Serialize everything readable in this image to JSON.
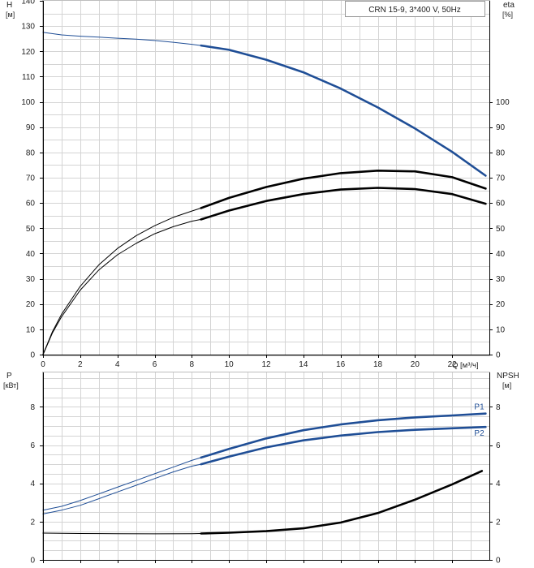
{
  "legend_label": "CRN 15-9, 3*400 V, 50Hz",
  "chart_data": [
    {
      "type": "line",
      "panel": "head-efficiency",
      "xlabel": "Q [м³/ч]",
      "xlim": [
        0,
        24
      ],
      "xticks": [
        0,
        2,
        4,
        6,
        8,
        10,
        12,
        14,
        16,
        18,
        20,
        22
      ],
      "left_axis": {
        "label": "H",
        "unit": "[м]",
        "ylim": [
          0,
          140
        ],
        "ticks": [
          0,
          10,
          20,
          30,
          40,
          50,
          60,
          70,
          80,
          90,
          100,
          110,
          120,
          130,
          140
        ]
      },
      "right_axis": {
        "label": "eta",
        "unit": "[%]",
        "ylim": [
          0,
          140
        ],
        "ticks": [
          0,
          10,
          20,
          30,
          40,
          50,
          60,
          70,
          80,
          90,
          100
        ]
      },
      "grid": true,
      "series": [
        {
          "axis": "left",
          "color": "#1f4e96",
          "operating_from": 8.5,
          "x": [
            0,
            1,
            2,
            3,
            4,
            5,
            6,
            7,
            8,
            8.5,
            10,
            12,
            14,
            16,
            18,
            20,
            22,
            23.8
          ],
          "y": [
            127.5,
            126.5,
            126,
            125.6,
            125.2,
            124.8,
            124.3,
            123.6,
            122.8,
            122.3,
            120.6,
            116.7,
            111.7,
            105.3,
            97.8,
            89.5,
            80.2,
            70.8
          ]
        },
        {
          "axis": "right",
          "color": "#000000",
          "operating_from": 8.5,
          "x": [
            0,
            0.5,
            1,
            2,
            3,
            4,
            5,
            6,
            7,
            8,
            8.5,
            10,
            12,
            14,
            16,
            18,
            20,
            22,
            23.8
          ],
          "y": [
            0,
            9,
            16,
            27,
            35.5,
            42,
            47,
            51,
            54.3,
            56.8,
            58,
            62,
            66.3,
            69.6,
            71.8,
            72.8,
            72.5,
            70.2,
            65.7
          ]
        },
        {
          "axis": "right",
          "color": "#000000",
          "operating_from": 8.5,
          "x": [
            0,
            0.5,
            1,
            2,
            3,
            4,
            5,
            6,
            7,
            8,
            8.5,
            10,
            12,
            14,
            16,
            18,
            20,
            22,
            23.8
          ],
          "y": [
            0,
            8.5,
            15,
            25.5,
            33.5,
            39.5,
            44,
            47.8,
            50.6,
            52.8,
            53.5,
            57,
            60.8,
            63.5,
            65.3,
            66,
            65.5,
            63.5,
            59.7
          ]
        }
      ]
    },
    {
      "type": "line",
      "panel": "power-npsh",
      "xlim": [
        0,
        24
      ],
      "xticks": [
        0,
        2,
        4,
        6,
        8,
        10,
        12,
        14,
        16,
        18,
        20,
        22
      ],
      "left_axis": {
        "label": "P",
        "unit": "[кВт]",
        "ylim": [
          0,
          9.8
        ],
        "ticks": [
          0,
          2,
          4,
          6,
          8
        ]
      },
      "right_axis": {
        "label": "NPSH",
        "unit": "[м]",
        "ylim": [
          0,
          9.8
        ],
        "ticks": [
          0,
          2,
          4,
          6,
          8
        ]
      },
      "grid": true,
      "series": [
        {
          "name": "P1",
          "axis": "left",
          "color": "#1f4e96",
          "operating_from": 8.5,
          "x": [
            0,
            1,
            2,
            3,
            4,
            5,
            6,
            7,
            8,
            8.5,
            10,
            12,
            14,
            16,
            18,
            20,
            22,
            23.8
          ],
          "y": [
            2.6,
            2.8,
            3.1,
            3.45,
            3.8,
            4.15,
            4.5,
            4.85,
            5.2,
            5.35,
            5.8,
            6.35,
            6.78,
            7.08,
            7.3,
            7.45,
            7.55,
            7.65
          ]
        },
        {
          "name": "P2",
          "axis": "left",
          "color": "#1f4e96",
          "operating_from": 8.5,
          "x": [
            0,
            1,
            2,
            3,
            4,
            5,
            6,
            7,
            8,
            8.5,
            10,
            12,
            14,
            16,
            18,
            20,
            22,
            23.8
          ],
          "y": [
            2.4,
            2.6,
            2.85,
            3.2,
            3.55,
            3.9,
            4.25,
            4.6,
            4.9,
            5.0,
            5.4,
            5.88,
            6.25,
            6.5,
            6.68,
            6.8,
            6.88,
            6.95
          ]
        },
        {
          "axis": "right",
          "color": "#000000",
          "operating_from": 8.5,
          "x": [
            0,
            2,
            4,
            6,
            8,
            8.5,
            10,
            12,
            14,
            16,
            18,
            20,
            22,
            23.6
          ],
          "y": [
            1.4,
            1.38,
            1.37,
            1.36,
            1.37,
            1.38,
            1.42,
            1.5,
            1.65,
            1.95,
            2.45,
            3.15,
            3.95,
            4.65
          ]
        }
      ]
    }
  ]
}
